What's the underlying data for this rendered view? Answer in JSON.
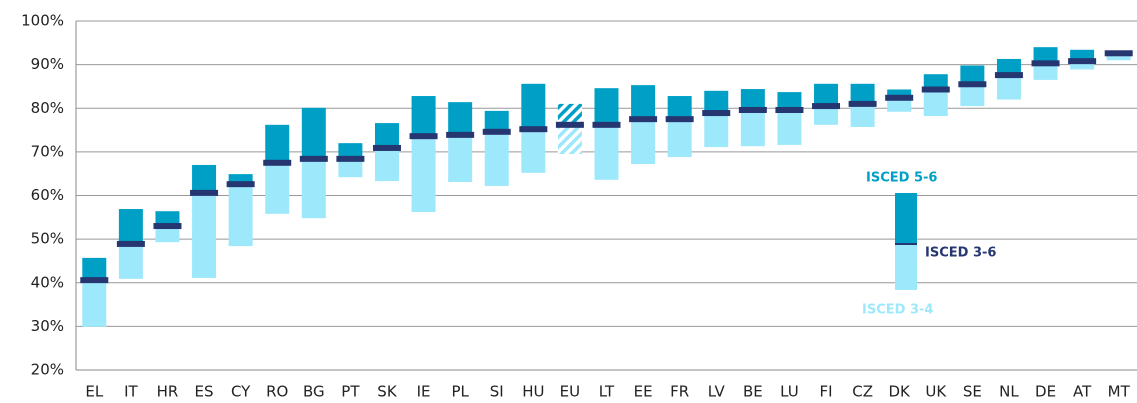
{
  "chart_data": {
    "type": "floating_bar",
    "categories": [
      "EL",
      "IT",
      "HR",
      "ES",
      "CY",
      "RO",
      "BG",
      "PT",
      "SK",
      "IE",
      "PL",
      "SI",
      "HU",
      "EU",
      "LT",
      "EE",
      "FR",
      "LV",
      "BE",
      "LU",
      "FI",
      "CZ",
      "DK",
      "UK",
      "SE",
      "NL",
      "DE",
      "AT",
      "MT"
    ],
    "series": [
      {
        "name": "ISCED 5-6",
        "color": "#00a0c6",
        "values": [
          45.7,
          56.9,
          56.4,
          67,
          64.9,
          76.2,
          80.1,
          72,
          76.6,
          82.8,
          81.4,
          79.4,
          85.6,
          81,
          84.6,
          85.3,
          82.8,
          84,
          84.4,
          83.7,
          85.6,
          85.6,
          84.3,
          87.8,
          89.8,
          91.3,
          94,
          93.4,
          null
        ]
      },
      {
        "name": "ISCED 3-6",
        "color": "#253671",
        "values": [
          40.6,
          48.9,
          53,
          60.6,
          62.6,
          67.5,
          68.4,
          68.4,
          70.9,
          73.6,
          73.9,
          74.6,
          75.2,
          76.2,
          76.2,
          77.5,
          77.5,
          78.9,
          79.6,
          79.6,
          80.5,
          81,
          82.4,
          84.3,
          85.5,
          87.6,
          90.3,
          90.8,
          92.6
        ]
      },
      {
        "name": "ISCED 3-4",
        "color": "#9de8fb",
        "values": [
          29.9,
          40.9,
          49.3,
          41.1,
          48.4,
          55.8,
          54.8,
          64.2,
          63.3,
          56.2,
          63.1,
          62.2,
          65.2,
          69.5,
          63.6,
          67.2,
          68.8,
          71.1,
          71.3,
          71.6,
          76.2,
          75.7,
          79.2,
          78.2,
          80.5,
          82,
          86.5,
          88.9,
          91
        ]
      }
    ],
    "hatched": "EU",
    "ylim": [
      20,
      100
    ],
    "yticks": [
      {
        "value": 20,
        "label": "20%"
      },
      {
        "value": 30,
        "label": "30%"
      },
      {
        "value": 40,
        "label": "40%"
      },
      {
        "value": 50,
        "label": "50%"
      },
      {
        "value": 60,
        "label": "60%"
      },
      {
        "value": 70,
        "label": "70%"
      },
      {
        "value": 80,
        "label": "80%"
      },
      {
        "value": 90,
        "label": "90%"
      },
      {
        "value": 100,
        "label": "100%"
      }
    ],
    "grid": true
  }
}
